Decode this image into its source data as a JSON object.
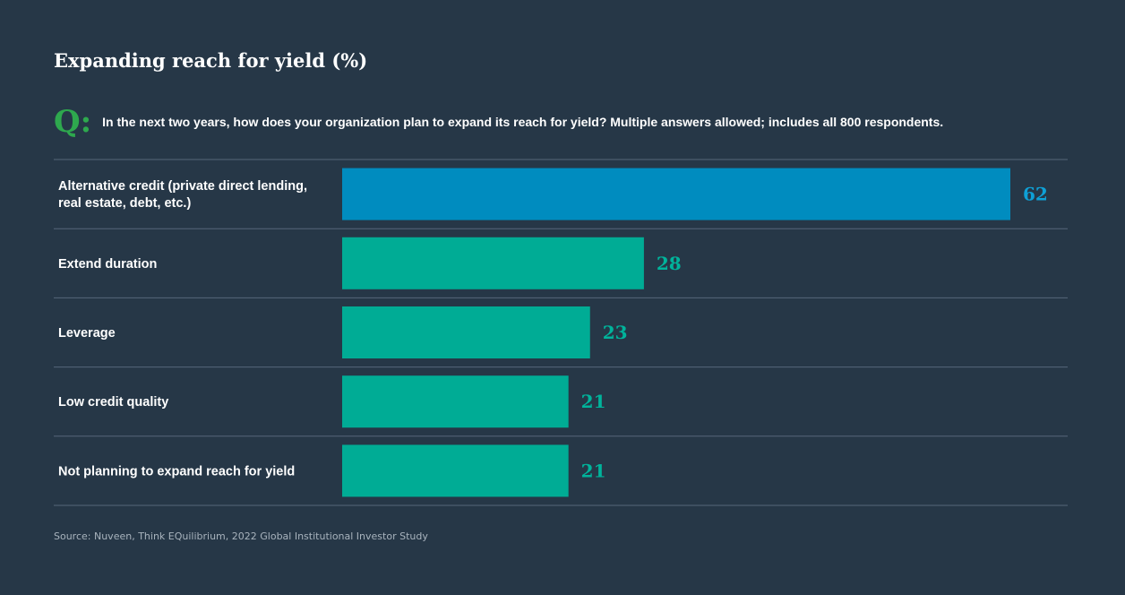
{
  "chart_data": {
    "type": "bar",
    "orientation": "horizontal",
    "title": "Expanding reach for yield (%)",
    "question_marker": "Q:",
    "question": "In the next two years, how does your organization plan to expand its reach for yield? Multiple answers allowed; includes all 800 respondents.",
    "categories": [
      [
        "Alternative credit (private direct lending,",
        "real estate, debt, etc.)"
      ],
      [
        "Extend duration"
      ],
      [
        "Leverage"
      ],
      [
        "Low credit quality"
      ],
      [
        "Not planning to expand reach for yield"
      ]
    ],
    "values": [
      62,
      28,
      23,
      21,
      21
    ],
    "highlight_index": 0,
    "xlim": [
      0,
      62
    ],
    "grid": false,
    "source": "Source: Nuveen, Think EQuilibrium, 2022 Global Institutional Investor Study"
  },
  "colors": {
    "background": "#263747",
    "highlight_bar": "#008cbf",
    "bar": "#00ac95",
    "highlight_label": "#0ea0d6",
    "label": "#00b39b",
    "question_mark": "#2ea84e",
    "divider": "#56677a",
    "text": "#ffffff",
    "source_text": "#a8b3bd"
  }
}
